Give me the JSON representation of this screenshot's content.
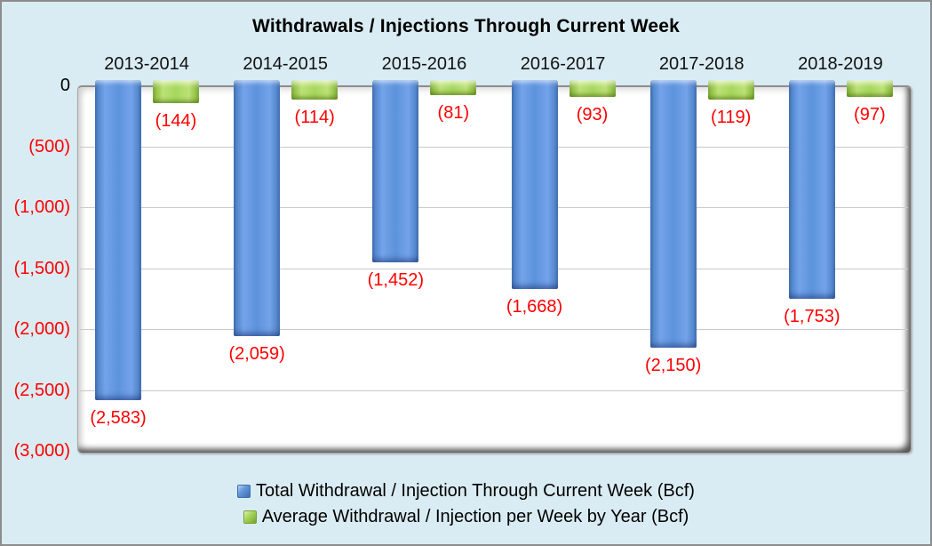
{
  "chart_data": {
    "type": "bar",
    "title": "Withdrawals / Injections Through Current Week",
    "categories": [
      "2013-2014",
      "2014-2015",
      "2015-2016",
      "2016-2017",
      "2017-2018",
      "2018-2019"
    ],
    "series": [
      {
        "name": "Total Withdrawal / Injection Through Current Week (Bcf)",
        "color": "#5C93DC",
        "values": [
          -2583,
          -2059,
          -1452,
          -1668,
          -2150,
          -1753
        ],
        "data_labels": [
          "(2,583)",
          "(2,059)",
          "(1,452)",
          "(1,668)",
          "(2,150)",
          "(1,753)"
        ]
      },
      {
        "name": "Average Withdrawal / Injection per Week by Year (Bcf)",
        "color": "#A6D75D",
        "values": [
          -144,
          -114,
          -81,
          -93,
          -119,
          -97
        ],
        "data_labels": [
          "(144)",
          "(114)",
          "(81)",
          "(93)",
          "(119)",
          "(97)"
        ]
      }
    ],
    "ylim": [
      -3000,
      0
    ],
    "y_ticks": [
      {
        "value": 0,
        "label": "0",
        "color": "#000000"
      },
      {
        "value": -500,
        "label": "(500)",
        "color": "#FF0000"
      },
      {
        "value": -1000,
        "label": "(1,000)",
        "color": "#FF0000"
      },
      {
        "value": -1500,
        "label": "(1,500)",
        "color": "#FF0000"
      },
      {
        "value": -2000,
        "label": "(2,000)",
        "color": "#FF0000"
      },
      {
        "value": -2500,
        "label": "(2,500)",
        "color": "#FF0000"
      },
      {
        "value": -3000,
        "label": "(3,000)",
        "color": "#FF0000"
      }
    ],
    "grid": true,
    "legend_position": "bottom",
    "data_label_color": "#FF0000",
    "background_color": "#DAECF3",
    "plot_background_color": "#FFFFFF"
  }
}
